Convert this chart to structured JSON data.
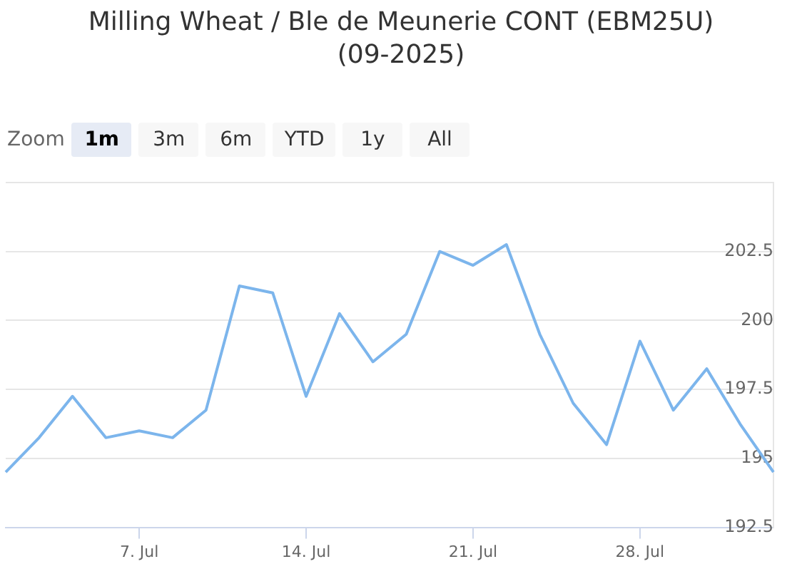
{
  "chart_data": {
    "type": "line",
    "title": "Milling Wheat / Ble de Meunerie CONT (EBM25U)",
    "subtitle": "(09-2025)",
    "annotations": [
      "Zoom",
      "1m",
      "3m",
      "6m",
      "YTD",
      "1y",
      "All"
    ],
    "categories": [
      null,
      null,
      null,
      null,
      "7. Jul",
      null,
      null,
      null,
      null,
      "14. Jul",
      null,
      null,
      null,
      null,
      "21. Jul",
      null,
      null,
      null,
      null,
      "28. Jul",
      null,
      null,
      null,
      null
    ],
    "series": [
      {
        "color": "#7cb5ec",
        "values": [
          194.5,
          195.75,
          197.25,
          195.75,
          196,
          195.75,
          196.75,
          201.25,
          201,
          197.25,
          200.25,
          198.5,
          199.5,
          202.5,
          202,
          202.75,
          199.5,
          197,
          195.5,
          199.25,
          196.75,
          198.25,
          196.25,
          194.5
        ]
      }
    ],
    "ylim": [
      192.5,
      205
    ],
    "yticks": [
      192.5,
      195,
      197.5,
      200,
      202.5,
      {
        "value": 205,
        "label": null
      }
    ],
    "grid": "y",
    "legend": false,
    "marker": "none",
    "line_style": "solid"
  }
}
